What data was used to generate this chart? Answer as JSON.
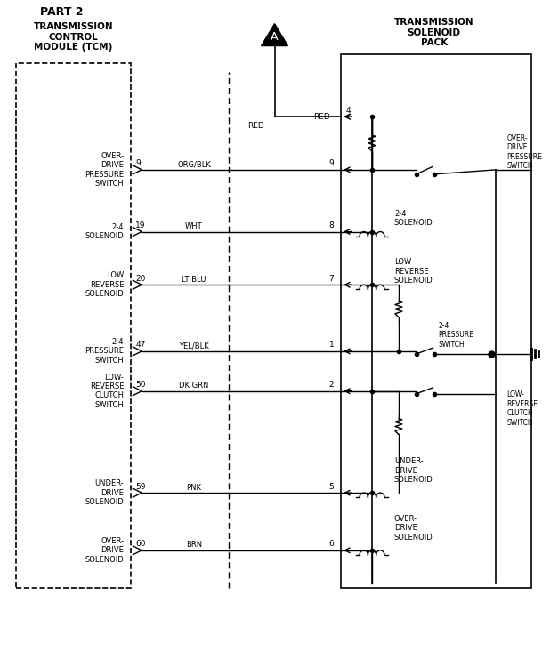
{
  "title": "PART 2",
  "connector_A_label": "A",
  "bg_color": "#ffffff",
  "line_color": "#000000",
  "tcm_label": "TRANSMISSION\nCONTROL\nMODULE (TCM)",
  "tsp_label": "TRANSMISSION\nSOLENOID\nPACK",
  "tcm_pins": [
    {
      "pin": "9",
      "label": "OVER-\nDRIVE\nPRESSURE\nSWITCH",
      "wire": "ORG/BLK",
      "rpin": "9"
    },
    {
      "pin": "19",
      "label": "2-4\nSOLENOID",
      "wire": "WHT",
      "rpin": "8"
    },
    {
      "pin": "20",
      "label": "LOW\nREVERSE\nSOLENOID",
      "wire": "LT BLU",
      "rpin": "7"
    },
    {
      "pin": "47",
      "label": "2-4\nPRESSURE\nSWITCH",
      "wire": "YEL/BLK",
      "rpin": "1"
    },
    {
      "pin": "50",
      "label": "LOW-\nREVERSE\nCLUTCH\nSWITCH",
      "wire": "DK GRN",
      "rpin": "2"
    },
    {
      "pin": "59",
      "label": "UNDER-\nDRIVE\nSOLENOID",
      "wire": "PNK",
      "rpin": "5"
    },
    {
      "pin": "60",
      "label": "OVER-\nDRIVE\nSOLENOID",
      "wire": "BRN",
      "rpin": "6"
    }
  ],
  "red_wire_pin": "4",
  "red_wire_label": "RED"
}
